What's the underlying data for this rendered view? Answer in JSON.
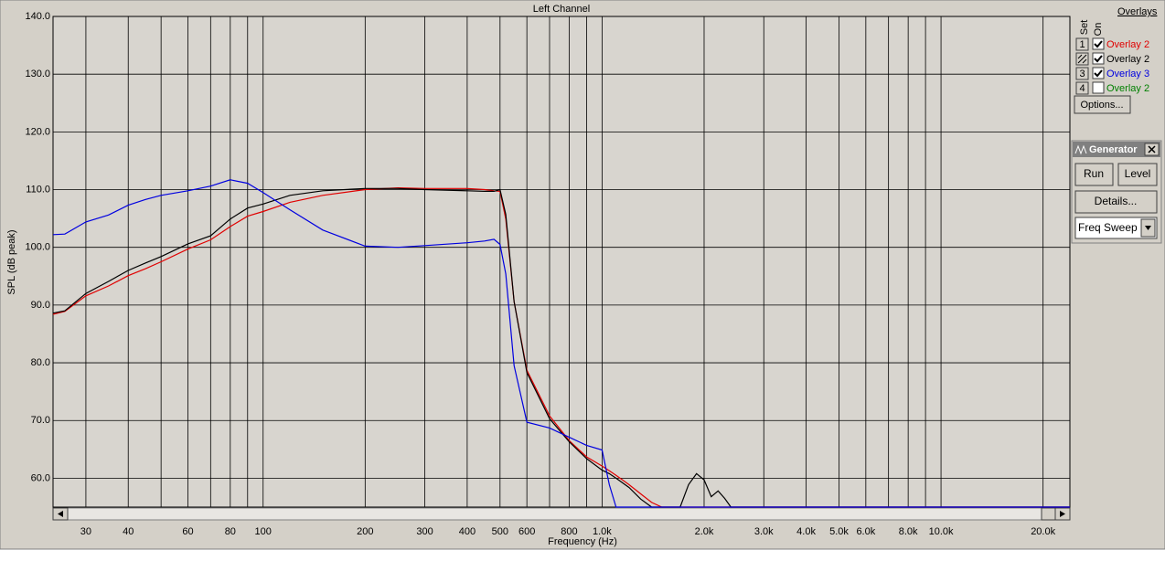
{
  "chart_data": {
    "type": "line",
    "title": "Left Channel",
    "x_label": "Frequency (Hz)",
    "y_label": "SPL (dB peak)",
    "x_scale": "log",
    "grid": true,
    "xlim": [
      24,
      24000
    ],
    "ylim": [
      55,
      140
    ],
    "xticks": [
      30,
      40,
      60,
      80,
      100,
      200,
      300,
      400,
      500,
      600,
      800,
      {
        "value": 1000,
        "label": "1.0k"
      },
      {
        "value": 2000,
        "label": "2.0k"
      },
      {
        "value": 3000,
        "label": "3.0k"
      },
      {
        "value": 4000,
        "label": "4.0k"
      },
      {
        "value": 5000,
        "label": "5.0k"
      },
      {
        "value": 6000,
        "label": "6.0k"
      },
      {
        "value": 8000,
        "label": "8.0k"
      },
      {
        "value": 10000,
        "label": "10.0k"
      },
      {
        "value": 20000,
        "label": "20.0k"
      }
    ],
    "xminor": [
      50,
      70,
      90,
      700,
      900,
      7000,
      9000
    ],
    "yticks": [
      {
        "value": 60,
        "label": "60.0"
      },
      {
        "value": 70,
        "label": "70.0"
      },
      {
        "value": 80,
        "label": "80.0"
      },
      {
        "value": 90,
        "label": "90.0"
      },
      {
        "value": 100,
        "label": "100.0"
      },
      {
        "value": 110,
        "label": "110.0"
      },
      {
        "value": 120,
        "label": "120.0"
      },
      {
        "value": 130,
        "label": "130.0"
      },
      {
        "value": 140,
        "label": "140.0"
      }
    ],
    "x": [
      24,
      26,
      30,
      35,
      40,
      45,
      50,
      60,
      70,
      80,
      90,
      100,
      120,
      150,
      200,
      250,
      300,
      400,
      450,
      480,
      500,
      520,
      550,
      600,
      700,
      800,
      900,
      1000,
      1050,
      1100,
      1200,
      1300,
      1400,
      1500,
      1700,
      1800,
      1900,
      2000,
      2100,
      2200,
      2300,
      2400,
      3000,
      5000,
      10000,
      20000,
      24000
    ],
    "series": [
      {
        "name": "Overlay 2",
        "set": "1",
        "checked": true,
        "color": "#e00000",
        "values": [
          88.4,
          88.9,
          91.6,
          93.3,
          95.1,
          96.3,
          97.5,
          99.7,
          101.3,
          103.6,
          105.4,
          106.2,
          107.8,
          109,
          110,
          110.3,
          110.2,
          110.2,
          110,
          109.8,
          109.7,
          104.9,
          90.6,
          78.7,
          70.8,
          66.5,
          63.7,
          62.1,
          61.3,
          60.5,
          58.9,
          57.3,
          55.8,
          55,
          55,
          55,
          55,
          55,
          55,
          55,
          55,
          55,
          55,
          55,
          55,
          55,
          55
        ]
      },
      {
        "name": "Overlay 2",
        "set": null,
        "checked": true,
        "color": "#000000",
        "values": [
          88.6,
          89,
          92,
          94.1,
          96,
          97.3,
          98.4,
          100.6,
          102,
          104.9,
          106.8,
          107.5,
          109,
          109.8,
          110.2,
          110.2,
          110,
          109.8,
          109.7,
          109.7,
          110,
          105.7,
          90.6,
          78.3,
          70.3,
          66.3,
          63.4,
          61.4,
          60.8,
          60,
          58.4,
          56.4,
          55,
          55,
          55,
          58.9,
          60.8,
          59.7,
          56.8,
          57.8,
          56.5,
          55,
          55,
          55,
          55,
          55,
          55
        ]
      },
      {
        "name": "Overlay 3",
        "set": "3",
        "checked": true,
        "color": "#0000e0",
        "values": [
          102.2,
          102.3,
          104.4,
          105.6,
          107.3,
          108.3,
          109,
          109.8,
          110.6,
          111.7,
          111.1,
          109.5,
          106.5,
          103,
          100.2,
          100,
          100.3,
          100.8,
          101.1,
          101.4,
          100.5,
          95.4,
          79.5,
          69.7,
          68.7,
          67.1,
          65.7,
          64.9,
          58.9,
          55,
          55,
          55,
          55,
          55,
          55,
          55,
          55,
          55,
          55,
          55,
          55,
          55,
          55,
          55,
          55,
          55,
          55
        ]
      },
      {
        "name": "Overlay 2",
        "set": "4",
        "checked": false,
        "color": "#008000",
        "values": [
          null,
          null,
          null,
          null,
          null,
          null,
          null,
          null,
          null,
          null,
          null,
          null,
          null,
          null,
          null,
          null,
          null,
          null,
          null,
          null,
          null,
          null,
          null,
          null,
          null,
          null,
          null,
          null,
          null,
          null,
          null,
          null,
          null,
          null,
          null,
          null,
          null,
          null,
          null,
          null,
          null,
          null,
          null,
          null,
          null,
          null,
          null
        ]
      }
    ]
  },
  "ui": {
    "set_header": "Set",
    "on_header": "On",
    "overlays_header": "Overlays",
    "options_button": "Options...",
    "generator": {
      "title": "Generator",
      "run": "Run",
      "level": "Level",
      "details": "Details...",
      "mode": "Freq Sweep"
    }
  }
}
